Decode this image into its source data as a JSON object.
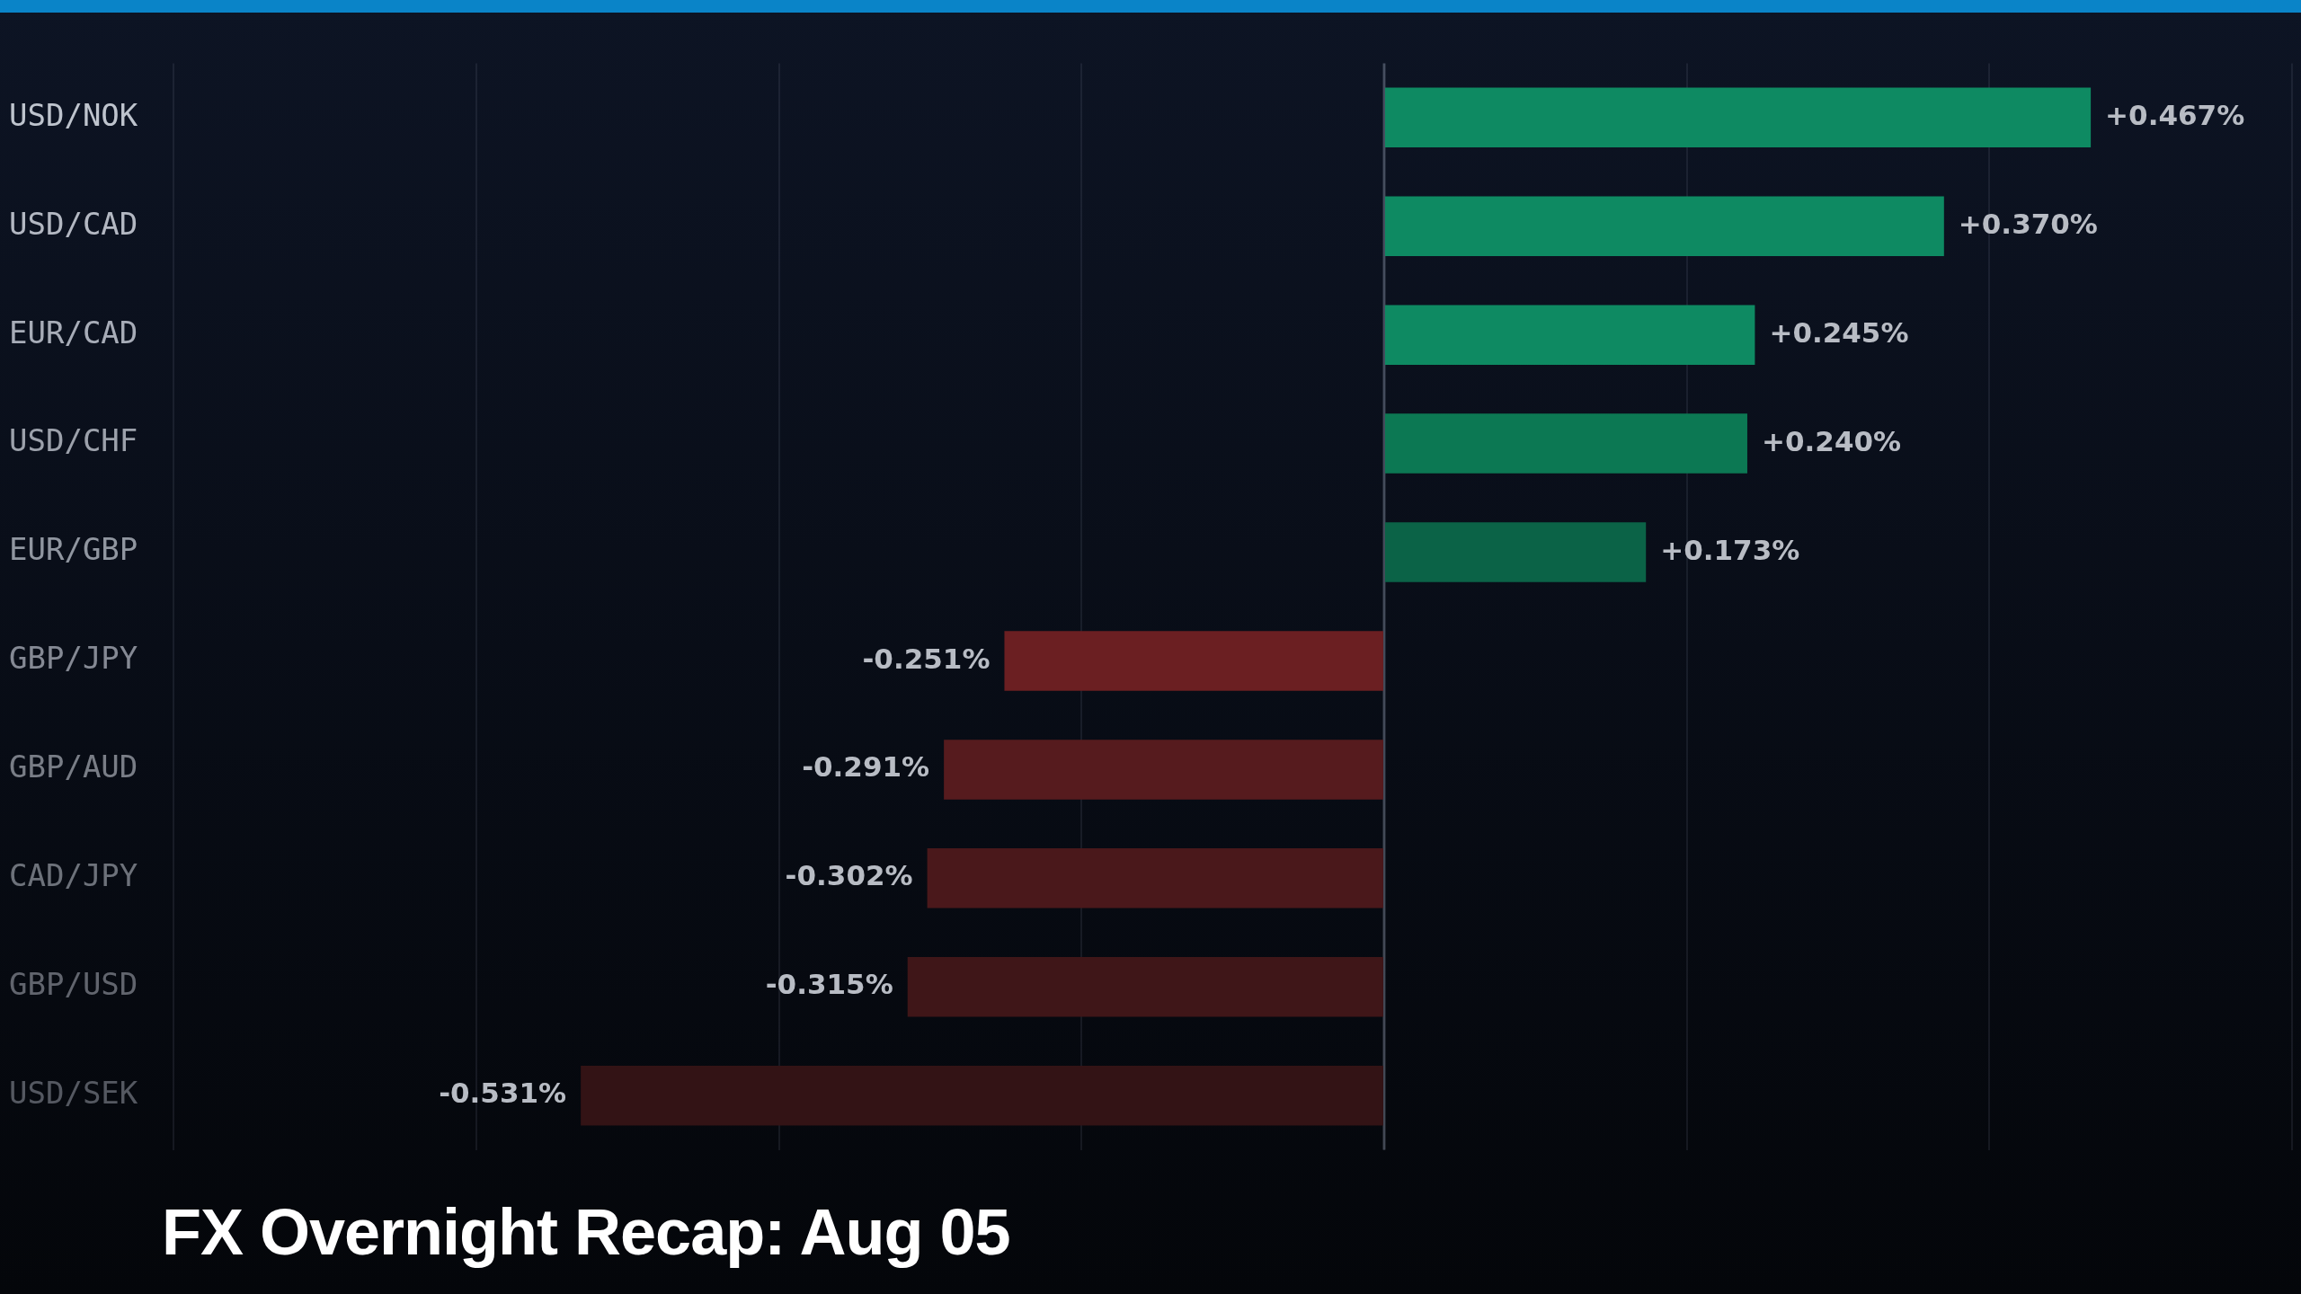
{
  "chart_data": {
    "type": "bar",
    "orientation": "horizontal",
    "title": "FX Overnight Recap: Aug 05",
    "categories": [
      "USD/NOK",
      "USD/CAD",
      "EUR/CAD",
      "USD/CHF",
      "EUR/GBP",
      "GBP/JPY",
      "GBP/AUD",
      "CAD/JPY",
      "GBP/USD",
      "USD/SEK"
    ],
    "values": [
      0.467,
      0.37,
      0.245,
      0.24,
      0.173,
      -0.251,
      -0.291,
      -0.302,
      -0.315,
      -0.531
    ],
    "colors": [
      "#0e8a62",
      "#0e8a62",
      "#0e8a62",
      "#0c7853",
      "#0b6347",
      "#6b1f22",
      "#561b1e",
      "#4a181b",
      "#3f1618",
      "#331315"
    ],
    "value_labels": [
      "+0.467%",
      "+0.370%",
      "+0.245%",
      "+0.240%",
      "+0.173%",
      "-0.251%",
      "-0.291%",
      "-0.302%",
      "-0.315%",
      "-0.531%"
    ],
    "grid": "x",
    "tick_labels": "y",
    "legend": false
  }
}
